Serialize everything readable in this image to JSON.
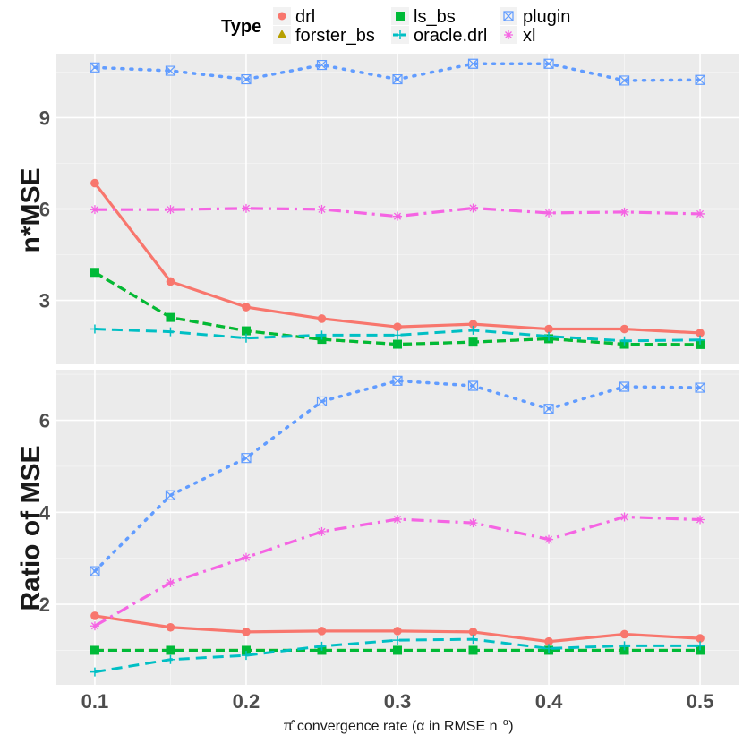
{
  "chart_data": {
    "type": "line",
    "x_label": "π̂ convergence rate (α in RMSE n",
    "x_label_sup": "−α",
    "x_label_end": ")",
    "x_ticks": [
      "0.1",
      "0.2",
      "0.3",
      "0.4",
      "0.5"
    ],
    "x": [
      0.1,
      0.15,
      0.2,
      0.25,
      0.3,
      0.35,
      0.4,
      0.45,
      0.5
    ],
    "xlim": [
      0.074,
      0.526
    ],
    "legend": {
      "title": "Type",
      "entries": [
        "drl",
        "forster_bs",
        "ls_bs",
        "oracle.drl",
        "plugin",
        "xl"
      ]
    },
    "colors": {
      "drl": "#F8766D",
      "forster_bs": "#B79F00",
      "ls_bs": "#00BA38",
      "oracle.drl": "#00BFC4",
      "plugin": "#619CFF",
      "xl": "#F564E3"
    },
    "panels": [
      {
        "ylabel": "n*MSE",
        "ylim": [
          0.9,
          11.1
        ],
        "y_ticks": [
          "3",
          "6",
          "9"
        ],
        "y_tick_values": [
          3,
          6,
          9
        ],
        "series": [
          {
            "name": "drl",
            "values": [
              6.85,
              3.62,
              2.78,
              2.4,
              2.13,
              2.22,
              2.06,
              2.06,
              1.93
            ]
          },
          {
            "name": "forster_bs",
            "values": [
              3.92,
              2.44,
              2.0,
              1.72,
              1.56,
              1.63,
              1.74,
              1.56,
              1.55
            ]
          },
          {
            "name": "ls_bs",
            "values": [
              3.92,
              2.44,
              2.0,
              1.72,
              1.56,
              1.63,
              1.74,
              1.56,
              1.55
            ]
          },
          {
            "name": "oracle.drl",
            "values": [
              2.06,
              1.97,
              1.76,
              1.86,
              1.86,
              2.02,
              1.82,
              1.67,
              1.7
            ]
          },
          {
            "name": "plugin",
            "values": [
              10.65,
              10.54,
              10.26,
              10.73,
              10.26,
              10.77,
              10.77,
              10.22,
              10.24
            ]
          },
          {
            "name": "xl",
            "values": [
              5.98,
              5.98,
              6.02,
              5.99,
              5.76,
              6.03,
              5.87,
              5.9,
              5.84
            ]
          }
        ]
      },
      {
        "ylabel": "Ratio of MSE",
        "ylim": [
          0.25,
          7.1
        ],
        "y_ticks": [
          "2",
          "4",
          "6"
        ],
        "y_tick_values": [
          2,
          4,
          6
        ],
        "series": [
          {
            "name": "drl",
            "values": [
              1.75,
              1.5,
              1.4,
              1.42,
              1.42,
              1.4,
              1.19,
              1.35,
              1.26
            ]
          },
          {
            "name": "forster_bs",
            "values": [
              1.0,
              1.0,
              1.0,
              1.0,
              1.0,
              1.0,
              1.0,
              1.0,
              1.0
            ]
          },
          {
            "name": "ls_bs",
            "values": [
              1.0,
              1.0,
              1.0,
              1.0,
              1.0,
              1.0,
              1.0,
              1.0,
              1.0
            ]
          },
          {
            "name": "oracle.drl",
            "values": [
              0.53,
              0.8,
              0.89,
              1.09,
              1.22,
              1.24,
              1.04,
              1.1,
              1.1
            ]
          },
          {
            "name": "plugin",
            "values": [
              2.72,
              4.37,
              5.18,
              6.41,
              6.86,
              6.75,
              6.25,
              6.73,
              6.71
            ]
          },
          {
            "name": "xl",
            "values": [
              1.53,
              2.47,
              3.02,
              3.58,
              3.85,
              3.77,
              3.41,
              3.9,
              3.84
            ]
          }
        ]
      }
    ]
  }
}
